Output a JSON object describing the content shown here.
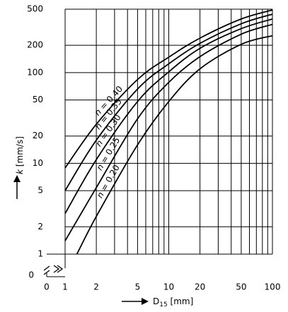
{
  "chart_data": {
    "type": "line",
    "x_scale": "log",
    "y_scale": "log",
    "xlim": [
      1,
      100
    ],
    "ylim": [
      1,
      500
    ],
    "grid": true,
    "x_ticks": [
      {
        "value": 1,
        "label": "1"
      },
      {
        "value": 2,
        "label": "2"
      },
      {
        "value": 5,
        "label": "5"
      },
      {
        "value": 10,
        "label": "10"
      },
      {
        "value": 20,
        "label": "20"
      },
      {
        "value": 50,
        "label": "50"
      },
      {
        "value": 100,
        "label": "100"
      }
    ],
    "x_gridlines": [
      1,
      2,
      3,
      4,
      5,
      6,
      7,
      8,
      9,
      10,
      20,
      30,
      40,
      50,
      60,
      70,
      80,
      90,
      100
    ],
    "y_ticks": [
      {
        "value": 1,
        "label": "1"
      },
      {
        "value": 2,
        "label": "2"
      },
      {
        "value": 5,
        "label": "5"
      },
      {
        "value": 10,
        "label": "10"
      },
      {
        "value": 20,
        "label": "20"
      },
      {
        "value": 50,
        "label": "50"
      },
      {
        "value": 100,
        "label": "100"
      },
      {
        "value": 200,
        "label": "200"
      },
      {
        "value": 500,
        "label": "500"
      }
    ],
    "y_gridlines": [
      1,
      2,
      5,
      10,
      20,
      50,
      100,
      200,
      500
    ],
    "origin_label_x": "0",
    "origin_label_y": "0",
    "xlabel_main": "D",
    "xlabel_sub": "15",
    "xlabel_unit": " [mm]",
    "ylabel_var": "k",
    "ylabel_unit": " [mm/s]",
    "series": [
      {
        "name": "n = 0.40",
        "points": [
          [
            1,
            8.9
          ],
          [
            2,
            27
          ],
          [
            5,
            84
          ],
          [
            10,
            148
          ],
          [
            20,
            240
          ],
          [
            50,
            390
          ],
          [
            100,
            490
          ]
        ]
      },
      {
        "name": "n = 0.35",
        "points": [
          [
            1,
            5.0
          ],
          [
            2,
            18
          ],
          [
            5,
            66
          ],
          [
            10,
            125
          ],
          [
            20,
            210
          ],
          [
            50,
            345
          ],
          [
            100,
            440
          ]
        ]
      },
      {
        "name": "n = 0.30",
        "points": [
          [
            1,
            2.8
          ],
          [
            2,
            11
          ],
          [
            5,
            48
          ],
          [
            10,
            102
          ],
          [
            20,
            185
          ],
          [
            50,
            305
          ],
          [
            100,
            390
          ]
        ]
      },
      {
        "name": "n = 0.25",
        "points": [
          [
            1,
            1.4
          ],
          [
            2,
            5.4
          ],
          [
            5,
            31
          ],
          [
            10,
            78
          ],
          [
            20,
            150
          ],
          [
            50,
            265
          ],
          [
            100,
            340
          ]
        ]
      },
      {
        "name": "n = 0.20",
        "points": [
          [
            1.3,
            1.0
          ],
          [
            2,
            2.6
          ],
          [
            5,
            16
          ],
          [
            10,
            48
          ],
          [
            20,
            110
          ],
          [
            50,
            205
          ],
          [
            100,
            255
          ]
        ]
      }
    ]
  }
}
